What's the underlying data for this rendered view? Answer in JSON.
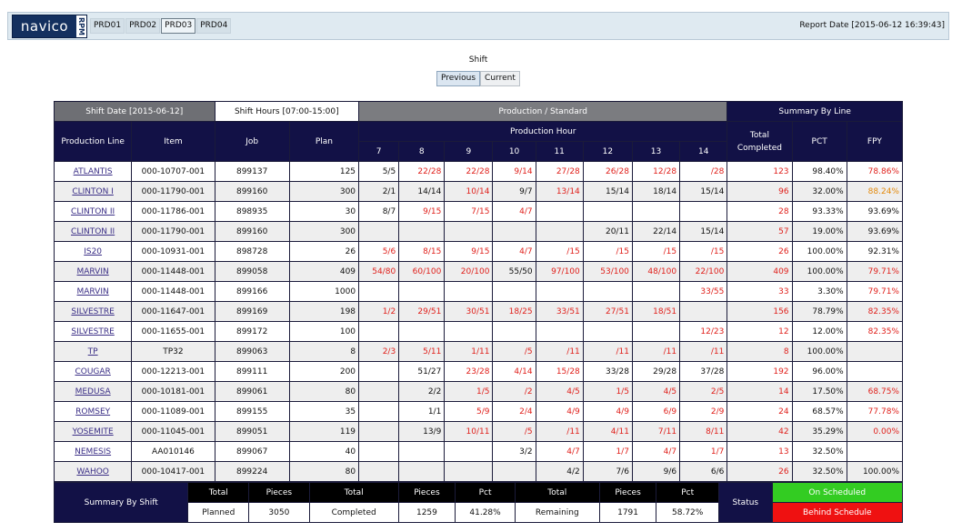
{
  "header": {
    "logo_text": "navico",
    "logo_sub": "RPM",
    "plants": [
      "PRD01",
      "PRD02",
      "PRD03",
      "PRD04"
    ],
    "selected_plant": "PRD03",
    "report_date": "Report Date [2015-06-12 16:39:43]"
  },
  "shift": {
    "title": "Shift",
    "previous_label": "Previous",
    "current_label": "Current",
    "selected": "Previous"
  },
  "table": {
    "shift_date": "Shift Date [2015-06-12]",
    "shift_hours": "Shift Hours [07:00-15:00]",
    "production_standard": "Production / Standard",
    "summary_by_line": "Summary By Line",
    "col_production_line": "Production Line",
    "col_item": "Item",
    "col_job": "Job",
    "col_plan": "Plan",
    "col_production_hour": "Production Hour",
    "hours": [
      "7",
      "8",
      "9",
      "10",
      "11",
      "12",
      "13",
      "14"
    ],
    "col_total_completed": "Total Completed",
    "col_pct": "PCT",
    "col_fpy": "FPY",
    "rows": [
      {
        "line": "ATLANTIS",
        "item": "000-10707-001",
        "job": "899137",
        "plan": "125",
        "hours": [
          [
            "5/5",
            ""
          ],
          [
            "22/28",
            "red"
          ],
          [
            "22/28",
            "red"
          ],
          [
            "9/14",
            "red"
          ],
          [
            "27/28",
            "red"
          ],
          [
            "26/28",
            "red"
          ],
          [
            "12/28",
            "red"
          ],
          [
            "/28",
            "red"
          ]
        ],
        "total": "123",
        "pct": "98.40%",
        "fpy": "78.86%",
        "fpy_color": "red"
      },
      {
        "line": "CLINTON I",
        "item": "000-11790-001",
        "job": "899160",
        "plan": "300",
        "hours": [
          [
            "2/1",
            ""
          ],
          [
            "14/14",
            ""
          ],
          [
            "10/14",
            "red"
          ],
          [
            "9/7",
            ""
          ],
          [
            "13/14",
            "red"
          ],
          [
            "15/14",
            ""
          ],
          [
            "18/14",
            ""
          ],
          [
            "15/14",
            ""
          ]
        ],
        "total": "96",
        "pct": "32.00%",
        "fpy": "88.24%",
        "fpy_color": "orange"
      },
      {
        "line": "CLINTON II",
        "item": "000-11786-001",
        "job": "898935",
        "plan": "30",
        "hours": [
          [
            "8/7",
            ""
          ],
          [
            "9/15",
            "red"
          ],
          [
            "7/15",
            "red"
          ],
          [
            "4/7",
            "red"
          ],
          [
            "",
            ""
          ],
          [
            "",
            ""
          ],
          [
            "",
            ""
          ],
          [
            "",
            ""
          ]
        ],
        "total": "28",
        "pct": "93.33%",
        "fpy": "93.69%",
        "fpy_color": ""
      },
      {
        "line": "CLINTON II",
        "item": "000-11790-001",
        "job": "899160",
        "plan": "300",
        "hours": [
          [
            "",
            ""
          ],
          [
            "",
            ""
          ],
          [
            "",
            ""
          ],
          [
            "",
            ""
          ],
          [
            "",
            ""
          ],
          [
            "20/11",
            ""
          ],
          [
            "22/14",
            ""
          ],
          [
            "15/14",
            ""
          ]
        ],
        "total": "57",
        "pct": "19.00%",
        "fpy": "93.69%",
        "fpy_color": ""
      },
      {
        "line": "IS20",
        "item": "000-10931-001",
        "job": "898728",
        "plan": "26",
        "hours": [
          [
            "5/6",
            "red"
          ],
          [
            "8/15",
            "red"
          ],
          [
            "9/15",
            "red"
          ],
          [
            "4/7",
            "red"
          ],
          [
            "/15",
            "red"
          ],
          [
            "/15",
            "red"
          ],
          [
            "/15",
            "red"
          ],
          [
            "/15",
            "red"
          ]
        ],
        "total": "26",
        "pct": "100.00%",
        "fpy": "92.31%",
        "fpy_color": ""
      },
      {
        "line": "MARVIN",
        "item": "000-11448-001",
        "job": "899058",
        "plan": "409",
        "hours": [
          [
            "54/80",
            "red"
          ],
          [
            "60/100",
            "red"
          ],
          [
            "20/100",
            "red"
          ],
          [
            "55/50",
            ""
          ],
          [
            "97/100",
            "red"
          ],
          [
            "53/100",
            "red"
          ],
          [
            "48/100",
            "red"
          ],
          [
            "22/100",
            "red"
          ]
        ],
        "total": "409",
        "pct": "100.00%",
        "fpy": "79.71%",
        "fpy_color": "red"
      },
      {
        "line": "MARVIN",
        "item": "000-11448-001",
        "job": "899166",
        "plan": "1000",
        "hours": [
          [
            "",
            ""
          ],
          [
            "",
            ""
          ],
          [
            "",
            ""
          ],
          [
            "",
            ""
          ],
          [
            "",
            ""
          ],
          [
            "",
            ""
          ],
          [
            "",
            ""
          ],
          [
            "33/55",
            "red"
          ]
        ],
        "total": "33",
        "pct": "3.30%",
        "fpy": "79.71%",
        "fpy_color": "red"
      },
      {
        "line": "SILVESTRE",
        "item": "000-11647-001",
        "job": "899169",
        "plan": "198",
        "hours": [
          [
            "1/2",
            "red"
          ],
          [
            "29/51",
            "red"
          ],
          [
            "30/51",
            "red"
          ],
          [
            "18/25",
            "red"
          ],
          [
            "33/51",
            "red"
          ],
          [
            "27/51",
            "red"
          ],
          [
            "18/51",
            "red"
          ],
          [
            "",
            ""
          ]
        ],
        "total": "156",
        "pct": "78.79%",
        "fpy": "82.35%",
        "fpy_color": "red"
      },
      {
        "line": "SILVESTRE",
        "item": "000-11655-001",
        "job": "899172",
        "plan": "100",
        "hours": [
          [
            "",
            ""
          ],
          [
            "",
            ""
          ],
          [
            "",
            ""
          ],
          [
            "",
            ""
          ],
          [
            "",
            ""
          ],
          [
            "",
            ""
          ],
          [
            "",
            ""
          ],
          [
            "12/23",
            "red"
          ]
        ],
        "total": "12",
        "pct": "12.00%",
        "fpy": "82.35%",
        "fpy_color": "red"
      },
      {
        "line": "TP",
        "item": "TP32",
        "job": "899063",
        "plan": "8",
        "hours": [
          [
            "2/3",
            "red"
          ],
          [
            "5/11",
            "red"
          ],
          [
            "1/11",
            "red"
          ],
          [
            "/5",
            "red"
          ],
          [
            "/11",
            "red"
          ],
          [
            "/11",
            "red"
          ],
          [
            "/11",
            "red"
          ],
          [
            "/11",
            "red"
          ]
        ],
        "total": "8",
        "pct": "100.00%",
        "fpy": "",
        "fpy_color": ""
      },
      {
        "line": "COUGAR",
        "item": "000-12213-001",
        "job": "899111",
        "plan": "200",
        "hours": [
          [
            "",
            ""
          ],
          [
            "51/27",
            ""
          ],
          [
            "23/28",
            "red"
          ],
          [
            "4/14",
            "red"
          ],
          [
            "15/28",
            "red"
          ],
          [
            "33/28",
            ""
          ],
          [
            "29/28",
            ""
          ],
          [
            "37/28",
            ""
          ]
        ],
        "total": "192",
        "pct": "96.00%",
        "fpy": "",
        "fpy_color": ""
      },
      {
        "line": "MEDUSA",
        "item": "000-10181-001",
        "job": "899061",
        "plan": "80",
        "hours": [
          [
            "",
            ""
          ],
          [
            "2/2",
            ""
          ],
          [
            "1/5",
            "red"
          ],
          [
            "/2",
            "red"
          ],
          [
            "4/5",
            "red"
          ],
          [
            "1/5",
            "red"
          ],
          [
            "4/5",
            "red"
          ],
          [
            "2/5",
            "red"
          ]
        ],
        "total": "14",
        "pct": "17.50%",
        "fpy": "68.75%",
        "fpy_color": "red"
      },
      {
        "line": "ROMSEY",
        "item": "000-11089-001",
        "job": "899155",
        "plan": "35",
        "hours": [
          [
            "",
            ""
          ],
          [
            "1/1",
            ""
          ],
          [
            "5/9",
            "red"
          ],
          [
            "2/4",
            "red"
          ],
          [
            "4/9",
            "red"
          ],
          [
            "4/9",
            "red"
          ],
          [
            "6/9",
            "red"
          ],
          [
            "2/9",
            "red"
          ]
        ],
        "total": "24",
        "pct": "68.57%",
        "fpy": "77.78%",
        "fpy_color": "red"
      },
      {
        "line": "YOSEMITE",
        "item": "000-11045-001",
        "job": "899051",
        "plan": "119",
        "hours": [
          [
            "",
            ""
          ],
          [
            "13/9",
            ""
          ],
          [
            "10/11",
            "red"
          ],
          [
            "/5",
            "red"
          ],
          [
            "/11",
            "red"
          ],
          [
            "4/11",
            "red"
          ],
          [
            "7/11",
            "red"
          ],
          [
            "8/11",
            "red"
          ]
        ],
        "total": "42",
        "pct": "35.29%",
        "fpy": "0.00%",
        "fpy_color": "red"
      },
      {
        "line": "NEMESIS",
        "item": "AA010146",
        "job": "899067",
        "plan": "40",
        "hours": [
          [
            "",
            ""
          ],
          [
            "",
            ""
          ],
          [
            "",
            ""
          ],
          [
            "3/2",
            ""
          ],
          [
            "4/7",
            "red"
          ],
          [
            "1/7",
            "red"
          ],
          [
            "4/7",
            "red"
          ],
          [
            "1/7",
            "red"
          ]
        ],
        "total": "13",
        "pct": "32.50%",
        "fpy": "",
        "fpy_color": ""
      },
      {
        "line": "WAHOO",
        "item": "000-10417-001",
        "job": "899224",
        "plan": "80",
        "hours": [
          [
            "",
            ""
          ],
          [
            "",
            ""
          ],
          [
            "",
            ""
          ],
          [
            "",
            ""
          ],
          [
            "4/2",
            ""
          ],
          [
            "7/6",
            ""
          ],
          [
            "9/6",
            ""
          ],
          [
            "6/6",
            ""
          ]
        ],
        "total": "26",
        "pct": "32.50%",
        "fpy": "100.00%",
        "fpy_color": ""
      }
    ]
  },
  "summary_shift": {
    "title": "Summary By Shift",
    "total_label": "Total",
    "pieces_label": "Pieces",
    "pct_label": "Pct",
    "planned_label": "Planned",
    "planned_pieces": "3050",
    "completed_label": "Completed",
    "completed_pieces": "1259",
    "completed_pct": "41.28%",
    "remaining_label": "Remaining",
    "remaining_pieces": "1791",
    "remaining_pct": "58.72%",
    "status_label": "Status",
    "on_scheduled": "On Scheduled",
    "behind_schedule": "Behind Schedule"
  }
}
